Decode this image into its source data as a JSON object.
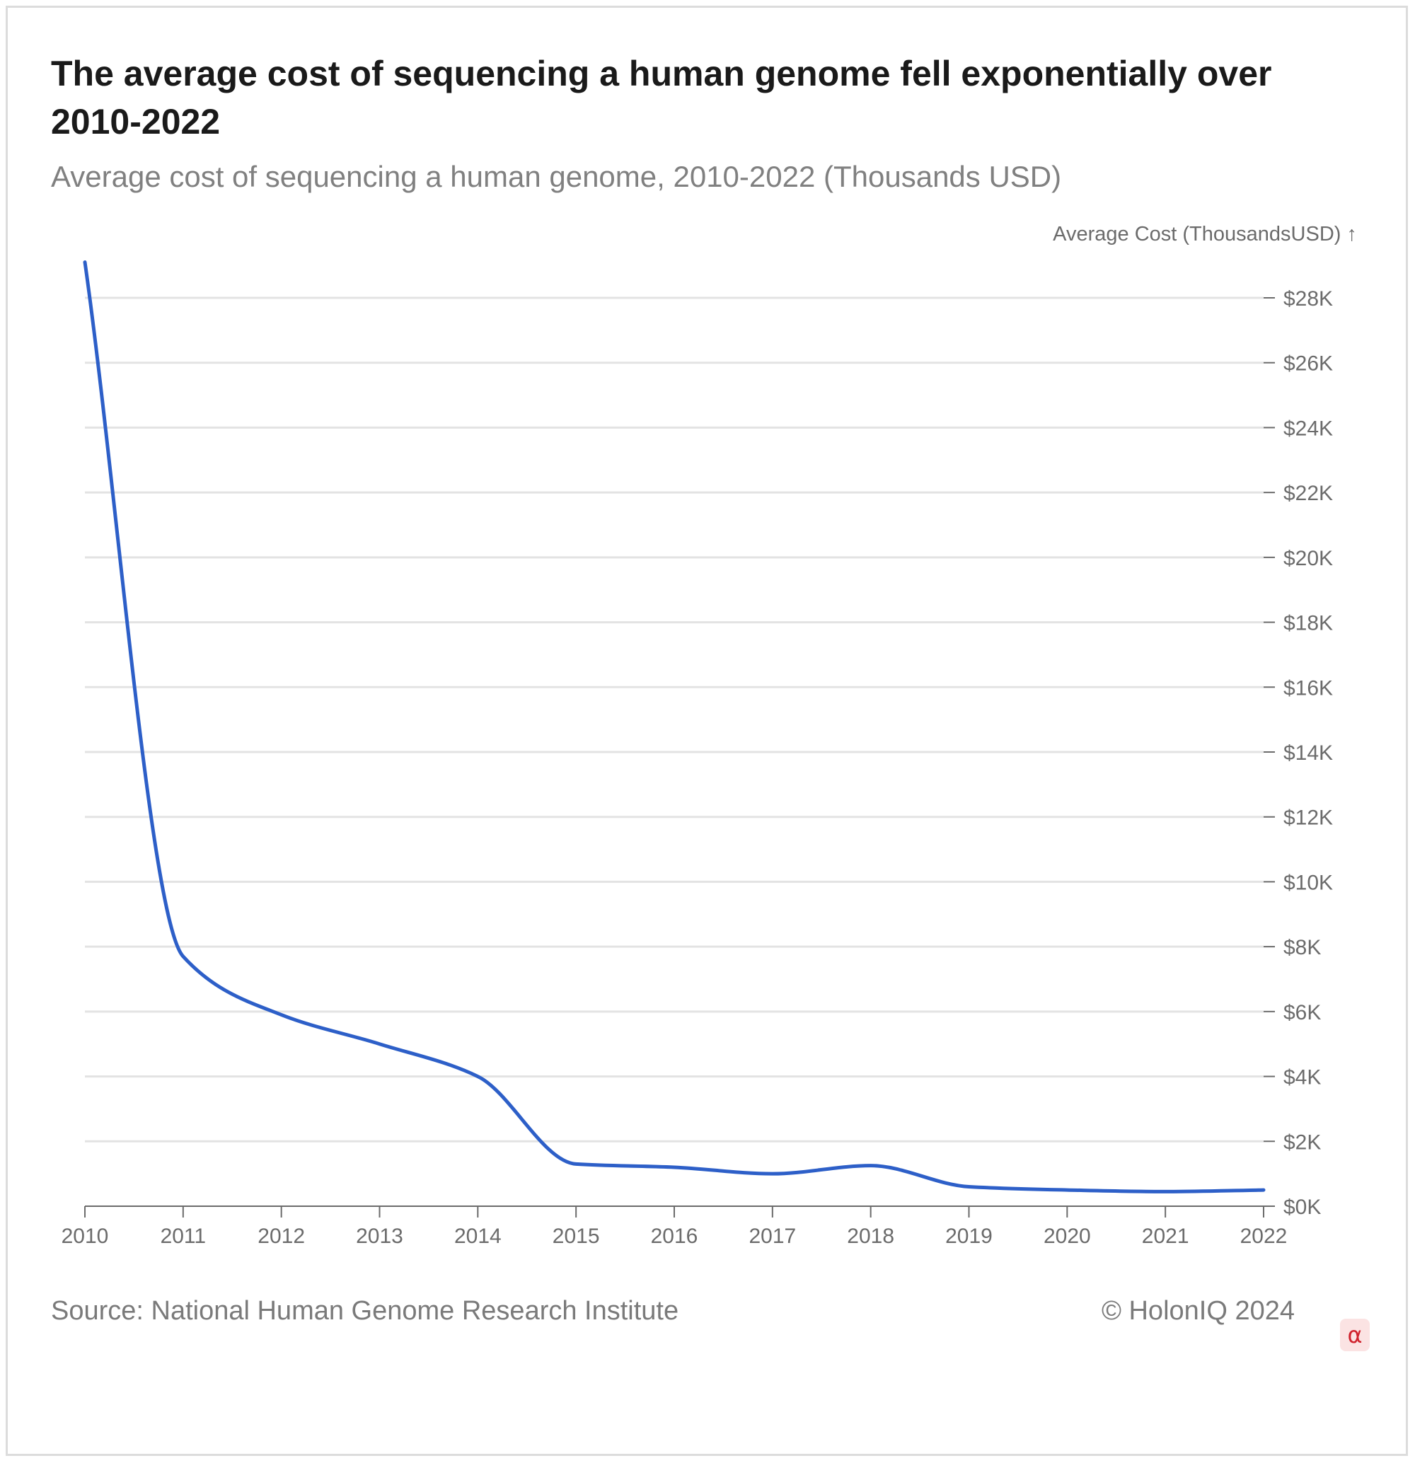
{
  "title": "The average cost of sequencing a human genome fell exponentially over 2010-2022",
  "subtitle": "Average cost of sequencing a human genome, 2010-2022 (Thousands USD)",
  "footer": {
    "source": "Source: National Human Genome Research Institute",
    "copyright": "© HolonIQ 2024",
    "badge": "α"
  },
  "colors": {
    "line": "#2d5fc8",
    "grid": "#e3e3e3",
    "axis": "#6b6b6b",
    "badge_bg": "#fbe3e3",
    "badge_text": "#d0222d"
  },
  "chart_data": {
    "type": "line",
    "ylabel": "Average Cost (ThousandsUSD) ↑",
    "ylim": [
      0,
      28
    ],
    "y_ticks": [
      0,
      2,
      4,
      6,
      8,
      10,
      12,
      14,
      16,
      18,
      20,
      22,
      24,
      26,
      28
    ],
    "y_tick_labels": [
      "$0K",
      "$2K",
      "$4K",
      "$6K",
      "$8K",
      "$10K",
      "$12K",
      "$14K",
      "$16K",
      "$18K",
      "$20K",
      "$22K",
      "$24K",
      "$26K",
      "$28K"
    ],
    "y_axis_position": "right",
    "grid": true,
    "x": [
      2010,
      2011,
      2012,
      2013,
      2014,
      2015,
      2016,
      2017,
      2018,
      2019,
      2020,
      2021,
      2022
    ],
    "x_tick_labels": [
      "2010",
      "2011",
      "2012",
      "2013",
      "2014",
      "2015",
      "2016",
      "2017",
      "2018",
      "2019",
      "2020",
      "2021",
      "2022"
    ],
    "series": [
      {
        "values": [
          29.1,
          7.7,
          5.9,
          5.0,
          4.0,
          1.3,
          1.2,
          1.0,
          1.25,
          0.6,
          0.5,
          0.45,
          0.5
        ]
      }
    ]
  }
}
